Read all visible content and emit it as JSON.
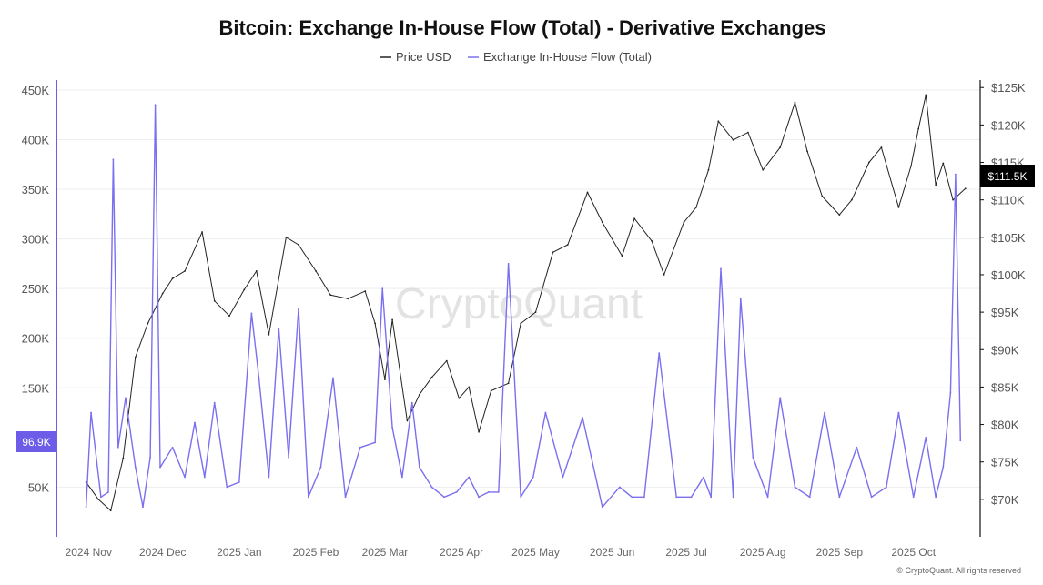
{
  "chart_data": {
    "type": "line",
    "title": "Bitcoin: Exchange In-House Flow (Total) - Derivative Exchanges",
    "legend": [
      {
        "name": "Price USD",
        "color": "#222222"
      },
      {
        "name": "Exchange In-House Flow (Total)",
        "color": "#7a6ff0"
      }
    ],
    "legend_position": "top-center",
    "grid": true,
    "x_ticks": [
      "2024 Nov",
      "2024 Dec",
      "2025 Jan",
      "2025 Feb",
      "2025 Mar",
      "2025 Apr",
      "2025 May",
      "2025 Jun",
      "2025 Jul",
      "2025 Aug",
      "2025 Sep",
      "2025 Oct"
    ],
    "left_axis": {
      "ticks": [
        "450K",
        "400K",
        "350K",
        "300K",
        "250K",
        "200K",
        "150K",
        "50K"
      ],
      "tick_values": [
        450000,
        400000,
        350000,
        300000,
        250000,
        200000,
        150000,
        50000
      ],
      "ylim": [
        0,
        460000
      ]
    },
    "right_axis": {
      "ticks": [
        "$125K",
        "$120K",
        "$115K",
        "$110K",
        "$105K",
        "$100K",
        "$95K",
        "$90K",
        "$85K",
        "$80K",
        "$75K",
        "$70K"
      ],
      "tick_values": [
        125000,
        120000,
        115000,
        110000,
        105000,
        100000,
        95000,
        90000,
        85000,
        80000,
        75000,
        70000
      ],
      "ylim": [
        65000,
        126000
      ]
    },
    "series": [
      {
        "name": "Price USD",
        "axis": "right",
        "color": "#222222",
        "x": [
          "2024-10-31",
          "2024-11-05",
          "2024-11-10",
          "2024-11-15",
          "2024-11-20",
          "2024-11-25",
          "2024-12-01",
          "2024-12-05",
          "2024-12-10",
          "2024-12-17",
          "2024-12-22",
          "2024-12-28",
          "2025-01-03",
          "2025-01-08",
          "2025-01-13",
          "2025-01-20",
          "2025-01-25",
          "2025-02-01",
          "2025-02-07",
          "2025-02-14",
          "2025-02-21",
          "2025-02-25",
          "2025-03-01",
          "2025-03-04",
          "2025-03-10",
          "2025-03-15",
          "2025-03-20",
          "2025-03-26",
          "2025-03-31",
          "2025-04-04",
          "2025-04-08",
          "2025-04-13",
          "2025-04-20",
          "2025-04-25",
          "2025-05-01",
          "2025-05-08",
          "2025-05-14",
          "2025-05-22",
          "2025-05-28",
          "2025-06-05",
          "2025-06-10",
          "2025-06-17",
          "2025-06-22",
          "2025-06-30",
          "2025-07-05",
          "2025-07-10",
          "2025-07-14",
          "2025-07-20",
          "2025-07-26",
          "2025-08-01",
          "2025-08-08",
          "2025-08-14",
          "2025-08-19",
          "2025-08-25",
          "2025-09-01",
          "2025-09-06",
          "2025-09-13",
          "2025-09-18",
          "2025-09-25",
          "2025-09-30",
          "2025-10-03",
          "2025-10-06",
          "2025-10-10",
          "2025-10-13",
          "2025-10-17",
          "2025-10-22"
        ],
        "values": [
          72300,
          70000,
          68500,
          75500,
          89000,
          93500,
          97500,
          99500,
          100500,
          105700,
          96500,
          94500,
          98000,
          100500,
          92000,
          105000,
          104000,
          100500,
          97300,
          96800,
          97800,
          93500,
          86000,
          94000,
          80500,
          84000,
          86300,
          88500,
          83500,
          85000,
          79000,
          84500,
          85500,
          93500,
          95000,
          103000,
          104000,
          111000,
          107000,
          102500,
          107500,
          104500,
          100000,
          107000,
          109000,
          114000,
          120500,
          118000,
          119000,
          114000,
          117000,
          123000,
          116500,
          110500,
          108000,
          110000,
          115000,
          117000,
          109000,
          114500,
          119500,
          124000,
          112000,
          114900,
          110000,
          111500
        ]
      },
      {
        "name": "Exchange In-House Flow (Total)",
        "axis": "left",
        "color": "#7a6ff0",
        "x": [
          "2024-10-31",
          "2024-11-02",
          "2024-11-06",
          "2024-11-09",
          "2024-11-11",
          "2024-11-13",
          "2024-11-16",
          "2024-11-20",
          "2024-11-23",
          "2024-11-26",
          "2024-11-28",
          "2024-11-30",
          "2024-12-05",
          "2024-12-10",
          "2024-12-14",
          "2024-12-18",
          "2024-12-22",
          "2024-12-27",
          "2025-01-01",
          "2025-01-06",
          "2025-01-09",
          "2025-01-13",
          "2025-01-17",
          "2025-01-21",
          "2025-01-25",
          "2025-01-29",
          "2025-02-03",
          "2025-02-08",
          "2025-02-13",
          "2025-02-19",
          "2025-02-25",
          "2025-02-28",
          "2025-03-04",
          "2025-03-08",
          "2025-03-12",
          "2025-03-15",
          "2025-03-20",
          "2025-03-25",
          "2025-03-30",
          "2025-04-04",
          "2025-04-08",
          "2025-04-12",
          "2025-04-16",
          "2025-04-20",
          "2025-04-25",
          "2025-04-30",
          "2025-05-05",
          "2025-05-12",
          "2025-05-20",
          "2025-05-28",
          "2025-06-04",
          "2025-06-09",
          "2025-06-14",
          "2025-06-20",
          "2025-06-27",
          "2025-07-03",
          "2025-07-08",
          "2025-07-11",
          "2025-07-15",
          "2025-07-20",
          "2025-07-23",
          "2025-07-28",
          "2025-08-03",
          "2025-08-08",
          "2025-08-14",
          "2025-08-20",
          "2025-08-26",
          "2025-09-01",
          "2025-09-08",
          "2025-09-14",
          "2025-09-20",
          "2025-09-25",
          "2025-10-01",
          "2025-10-06",
          "2025-10-10",
          "2025-10-13",
          "2025-10-16",
          "2025-10-18",
          "2025-10-20"
        ],
        "values": [
          30000,
          125000,
          40000,
          45000,
          380000,
          90000,
          140000,
          70000,
          30000,
          80000,
          435000,
          70000,
          90000,
          60000,
          115000,
          60000,
          135000,
          50000,
          55000,
          225000,
          160000,
          60000,
          210000,
          80000,
          230000,
          40000,
          70000,
          160000,
          40000,
          90000,
          95000,
          250000,
          110000,
          60000,
          135000,
          70000,
          50000,
          40000,
          45000,
          60000,
          40000,
          45000,
          45000,
          275000,
          40000,
          60000,
          125000,
          60000,
          120000,
          30000,
          50000,
          40000,
          40000,
          185000,
          40000,
          40000,
          60000,
          40000,
          270000,
          40000,
          240000,
          80000,
          40000,
          140000,
          50000,
          40000,
          125000,
          40000,
          90000,
          40000,
          50000,
          125000,
          40000,
          100000,
          40000,
          70000,
          145000,
          365000,
          96900
        ]
      }
    ],
    "last_values": {
      "price": "$111.5K",
      "flow": "96.9K"
    }
  },
  "credit": "© CryptoQuant. All rights reserved",
  "watermark": "CryptoQuant"
}
